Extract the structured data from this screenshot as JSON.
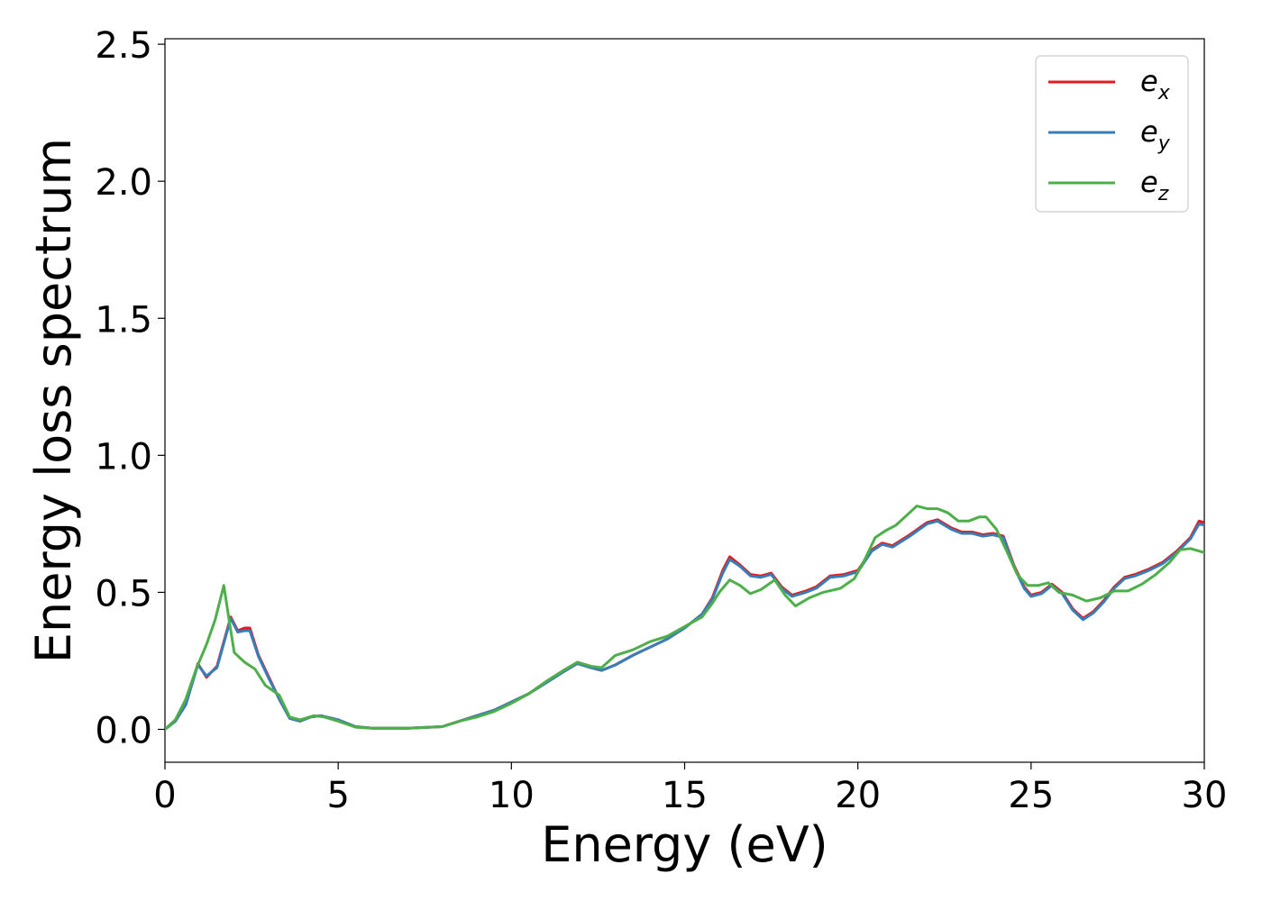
{
  "chart_data": {
    "type": "line",
    "title": "",
    "xlabel": "Energy (eV)",
    "ylabel": "Energy loss spectrum",
    "xlim": [
      0,
      30
    ],
    "ylim": [
      -0.12,
      2.52
    ],
    "xticks": [
      0,
      5,
      10,
      15,
      20,
      25,
      30
    ],
    "xtick_labels": [
      "0",
      "5",
      "10",
      "15",
      "20",
      "25",
      "30"
    ],
    "yticks": [
      0.0,
      0.5,
      1.0,
      1.5,
      2.0,
      2.5
    ],
    "ytick_labels": [
      "0.0",
      "0.5",
      "1.0",
      "1.5",
      "2.0",
      "2.5"
    ],
    "grid": false,
    "legend_position": "top-right",
    "series": [
      {
        "name": "e_x",
        "legend_base": "e",
        "legend_sub": "x",
        "color": "#e41a1c",
        "points": [
          [
            0,
            0.0
          ],
          [
            0.3,
            0.03
          ],
          [
            0.6,
            0.09
          ],
          [
            0.95,
            0.24
          ],
          [
            1.2,
            0.19
          ],
          [
            1.5,
            0.23
          ],
          [
            1.9,
            0.41
          ],
          [
            2.1,
            0.36
          ],
          [
            2.3,
            0.37
          ],
          [
            2.45,
            0.37
          ],
          [
            2.7,
            0.27
          ],
          [
            3.0,
            0.19
          ],
          [
            3.3,
            0.11
          ],
          [
            3.6,
            0.04
          ],
          [
            3.9,
            0.03
          ],
          [
            4.2,
            0.045
          ],
          [
            4.5,
            0.05
          ],
          [
            5.0,
            0.035
          ],
          [
            5.5,
            0.01
          ],
          [
            6.0,
            0.004
          ],
          [
            7.0,
            0.004
          ],
          [
            8.0,
            0.01
          ],
          [
            8.5,
            0.03
          ],
          [
            9.0,
            0.05
          ],
          [
            9.5,
            0.07
          ],
          [
            10.0,
            0.1
          ],
          [
            10.5,
            0.13
          ],
          [
            11.0,
            0.17
          ],
          [
            11.5,
            0.21
          ],
          [
            11.9,
            0.24
          ],
          [
            12.3,
            0.225
          ],
          [
            12.6,
            0.215
          ],
          [
            13.0,
            0.235
          ],
          [
            13.5,
            0.27
          ],
          [
            14.0,
            0.3
          ],
          [
            14.5,
            0.33
          ],
          [
            15.0,
            0.37
          ],
          [
            15.5,
            0.42
          ],
          [
            15.8,
            0.48
          ],
          [
            16.1,
            0.58
          ],
          [
            16.3,
            0.63
          ],
          [
            16.6,
            0.6
          ],
          [
            16.9,
            0.565
          ],
          [
            17.2,
            0.56
          ],
          [
            17.5,
            0.57
          ],
          [
            17.8,
            0.52
          ],
          [
            18.1,
            0.49
          ],
          [
            18.5,
            0.505
          ],
          [
            18.8,
            0.52
          ],
          [
            19.2,
            0.56
          ],
          [
            19.6,
            0.565
          ],
          [
            20.0,
            0.58
          ],
          [
            20.4,
            0.655
          ],
          [
            20.7,
            0.68
          ],
          [
            21.0,
            0.67
          ],
          [
            21.5,
            0.71
          ],
          [
            22.0,
            0.755
          ],
          [
            22.3,
            0.765
          ],
          [
            22.7,
            0.735
          ],
          [
            23.0,
            0.72
          ],
          [
            23.3,
            0.72
          ],
          [
            23.6,
            0.71
          ],
          [
            23.9,
            0.715
          ],
          [
            24.2,
            0.705
          ],
          [
            24.5,
            0.6
          ],
          [
            24.8,
            0.52
          ],
          [
            25.0,
            0.49
          ],
          [
            25.3,
            0.5
          ],
          [
            25.6,
            0.53
          ],
          [
            25.9,
            0.5
          ],
          [
            26.2,
            0.44
          ],
          [
            26.5,
            0.405
          ],
          [
            26.8,
            0.43
          ],
          [
            27.1,
            0.47
          ],
          [
            27.4,
            0.52
          ],
          [
            27.7,
            0.555
          ],
          [
            28.0,
            0.565
          ],
          [
            28.4,
            0.585
          ],
          [
            28.8,
            0.61
          ],
          [
            29.2,
            0.65
          ],
          [
            29.6,
            0.7
          ],
          [
            29.85,
            0.76
          ],
          [
            30.0,
            0.755
          ]
        ]
      },
      {
        "name": "e_y",
        "legend_base": "e",
        "legend_sub": "y",
        "color": "#377eb8",
        "points": [
          [
            0,
            0.0
          ],
          [
            0.3,
            0.03
          ],
          [
            0.6,
            0.09
          ],
          [
            0.95,
            0.235
          ],
          [
            1.2,
            0.195
          ],
          [
            1.5,
            0.225
          ],
          [
            1.9,
            0.405
          ],
          [
            2.1,
            0.355
          ],
          [
            2.3,
            0.36
          ],
          [
            2.45,
            0.36
          ],
          [
            2.7,
            0.265
          ],
          [
            3.0,
            0.185
          ],
          [
            3.3,
            0.11
          ],
          [
            3.6,
            0.04
          ],
          [
            3.9,
            0.03
          ],
          [
            4.2,
            0.045
          ],
          [
            4.5,
            0.05
          ],
          [
            5.0,
            0.035
          ],
          [
            5.5,
            0.01
          ],
          [
            6.0,
            0.004
          ],
          [
            7.0,
            0.004
          ],
          [
            8.0,
            0.01
          ],
          [
            8.5,
            0.03
          ],
          [
            9.0,
            0.05
          ],
          [
            9.5,
            0.07
          ],
          [
            10.0,
            0.1
          ],
          [
            10.5,
            0.13
          ],
          [
            11.0,
            0.17
          ],
          [
            11.5,
            0.21
          ],
          [
            11.9,
            0.24
          ],
          [
            12.3,
            0.225
          ],
          [
            12.6,
            0.215
          ],
          [
            13.0,
            0.235
          ],
          [
            13.5,
            0.27
          ],
          [
            14.0,
            0.3
          ],
          [
            14.5,
            0.33
          ],
          [
            15.0,
            0.37
          ],
          [
            15.5,
            0.42
          ],
          [
            15.8,
            0.475
          ],
          [
            16.1,
            0.57
          ],
          [
            16.3,
            0.62
          ],
          [
            16.6,
            0.595
          ],
          [
            16.9,
            0.56
          ],
          [
            17.2,
            0.555
          ],
          [
            17.5,
            0.565
          ],
          [
            17.8,
            0.515
          ],
          [
            18.1,
            0.485
          ],
          [
            18.5,
            0.5
          ],
          [
            18.8,
            0.515
          ],
          [
            19.2,
            0.555
          ],
          [
            19.6,
            0.56
          ],
          [
            20.0,
            0.575
          ],
          [
            20.4,
            0.65
          ],
          [
            20.7,
            0.675
          ],
          [
            21.0,
            0.665
          ],
          [
            21.5,
            0.705
          ],
          [
            22.0,
            0.75
          ],
          [
            22.3,
            0.76
          ],
          [
            22.7,
            0.73
          ],
          [
            23.0,
            0.715
          ],
          [
            23.3,
            0.715
          ],
          [
            23.6,
            0.705
          ],
          [
            23.9,
            0.71
          ],
          [
            24.2,
            0.7
          ],
          [
            24.5,
            0.595
          ],
          [
            24.8,
            0.515
          ],
          [
            25.0,
            0.485
          ],
          [
            25.3,
            0.495
          ],
          [
            25.6,
            0.525
          ],
          [
            25.9,
            0.495
          ],
          [
            26.2,
            0.435
          ],
          [
            26.5,
            0.4
          ],
          [
            26.8,
            0.425
          ],
          [
            27.1,
            0.465
          ],
          [
            27.4,
            0.515
          ],
          [
            27.7,
            0.55
          ],
          [
            28.0,
            0.56
          ],
          [
            28.4,
            0.58
          ],
          [
            28.8,
            0.605
          ],
          [
            29.2,
            0.645
          ],
          [
            29.6,
            0.695
          ],
          [
            29.85,
            0.75
          ],
          [
            30.0,
            0.745
          ]
        ]
      },
      {
        "name": "e_z",
        "legend_base": "e",
        "legend_sub": "z",
        "color": "#4daf4a",
        "points": [
          [
            0,
            0.0
          ],
          [
            0.3,
            0.035
          ],
          [
            0.6,
            0.11
          ],
          [
            0.9,
            0.22
          ],
          [
            1.2,
            0.31
          ],
          [
            1.45,
            0.4
          ],
          [
            1.7,
            0.525
          ],
          [
            1.85,
            0.4
          ],
          [
            2.0,
            0.28
          ],
          [
            2.3,
            0.245
          ],
          [
            2.6,
            0.22
          ],
          [
            2.9,
            0.16
          ],
          [
            3.3,
            0.125
          ],
          [
            3.6,
            0.045
          ],
          [
            3.9,
            0.035
          ],
          [
            4.3,
            0.05
          ],
          [
            4.6,
            0.045
          ],
          [
            5.0,
            0.03
          ],
          [
            5.5,
            0.008
          ],
          [
            6.0,
            0.004
          ],
          [
            7.0,
            0.004
          ],
          [
            8.0,
            0.01
          ],
          [
            8.5,
            0.03
          ],
          [
            9.0,
            0.045
          ],
          [
            9.5,
            0.065
          ],
          [
            10.0,
            0.095
          ],
          [
            10.5,
            0.13
          ],
          [
            11.0,
            0.175
          ],
          [
            11.5,
            0.215
          ],
          [
            11.9,
            0.245
          ],
          [
            12.3,
            0.23
          ],
          [
            12.6,
            0.225
          ],
          [
            13.0,
            0.27
          ],
          [
            13.5,
            0.29
          ],
          [
            14.0,
            0.32
          ],
          [
            14.5,
            0.34
          ],
          [
            15.0,
            0.375
          ],
          [
            15.5,
            0.41
          ],
          [
            15.8,
            0.46
          ],
          [
            16.0,
            0.5
          ],
          [
            16.3,
            0.545
          ],
          [
            16.6,
            0.525
          ],
          [
            16.9,
            0.495
          ],
          [
            17.2,
            0.51
          ],
          [
            17.6,
            0.545
          ],
          [
            17.9,
            0.49
          ],
          [
            18.2,
            0.45
          ],
          [
            18.6,
            0.48
          ],
          [
            19.0,
            0.5
          ],
          [
            19.5,
            0.515
          ],
          [
            19.9,
            0.55
          ],
          [
            20.2,
            0.62
          ],
          [
            20.5,
            0.7
          ],
          [
            20.8,
            0.725
          ],
          [
            21.1,
            0.745
          ],
          [
            21.4,
            0.78
          ],
          [
            21.7,
            0.815
          ],
          [
            22.0,
            0.805
          ],
          [
            22.3,
            0.805
          ],
          [
            22.6,
            0.79
          ],
          [
            22.9,
            0.76
          ],
          [
            23.2,
            0.76
          ],
          [
            23.5,
            0.775
          ],
          [
            23.7,
            0.775
          ],
          [
            24.0,
            0.73
          ],
          [
            24.3,
            0.65
          ],
          [
            24.6,
            0.565
          ],
          [
            24.9,
            0.525
          ],
          [
            25.2,
            0.525
          ],
          [
            25.5,
            0.535
          ],
          [
            25.8,
            0.5
          ],
          [
            26.2,
            0.49
          ],
          [
            26.6,
            0.468
          ],
          [
            27.0,
            0.48
          ],
          [
            27.4,
            0.505
          ],
          [
            27.8,
            0.505
          ],
          [
            28.2,
            0.53
          ],
          [
            28.6,
            0.565
          ],
          [
            29.0,
            0.61
          ],
          [
            29.3,
            0.655
          ],
          [
            29.6,
            0.66
          ],
          [
            30.0,
            0.645
          ]
        ]
      }
    ]
  }
}
